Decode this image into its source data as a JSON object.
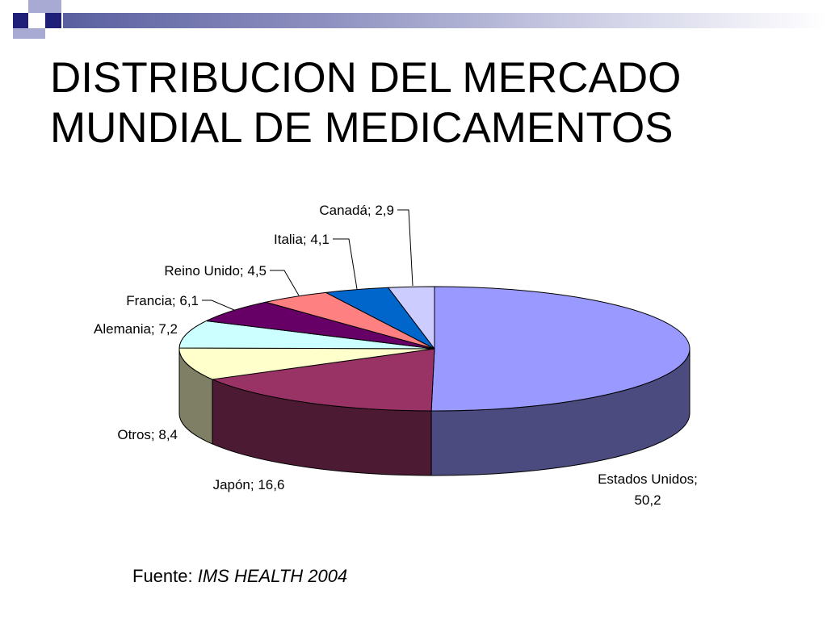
{
  "slide": {
    "title_line1": "DISTRIBUCION DEL MERCADO",
    "title_line2": "MUNDIAL DE MEDICAMENTOS",
    "source_prefix": "Fuente: ",
    "source_name": "IMS HEALTH 2004"
  },
  "colors": {
    "deco_dark": "#1f1f7a",
    "deco_light": "#a8aad4"
  },
  "chart_data": {
    "type": "pie",
    "title": "",
    "unit": "",
    "slices": [
      {
        "label": "Estados Unidos; 50,2",
        "name": "Estados Unidos",
        "value": 50.2,
        "color": "#9999ff",
        "side": "#4b4b7f"
      },
      {
        "label": "Japón; 16,6",
        "name": "Japón",
        "value": 16.6,
        "color": "#993366",
        "side": "#4c1a33"
      },
      {
        "label": "Otros; 8,4",
        "name": "Otros",
        "value": 8.4,
        "color": "#ffffcc",
        "side": "#7f7f66"
      },
      {
        "label": "Alemania; 7,2",
        "name": "Alemania",
        "value": 7.2,
        "color": "#ccffff",
        "side": "#667f7f"
      },
      {
        "label": "Francia; 6,1",
        "name": "Francia",
        "value": 6.1,
        "color": "#660066",
        "side": "#330033"
      },
      {
        "label": "Reino Unido; 4,5",
        "name": "Reino Unido",
        "value": 4.5,
        "color": "#ff8080",
        "side": "#7f4040"
      },
      {
        "label": "Italia; 4,1",
        "name": "Italia",
        "value": 4.1,
        "color": "#0066cc",
        "side": "#003366"
      },
      {
        "label": "Canadá; 2,9",
        "name": "Canadá",
        "value": 2.9,
        "color": "#ccccff",
        "side": "#66667f"
      }
    ],
    "legend": "none",
    "labels": "outside with leader lines"
  }
}
